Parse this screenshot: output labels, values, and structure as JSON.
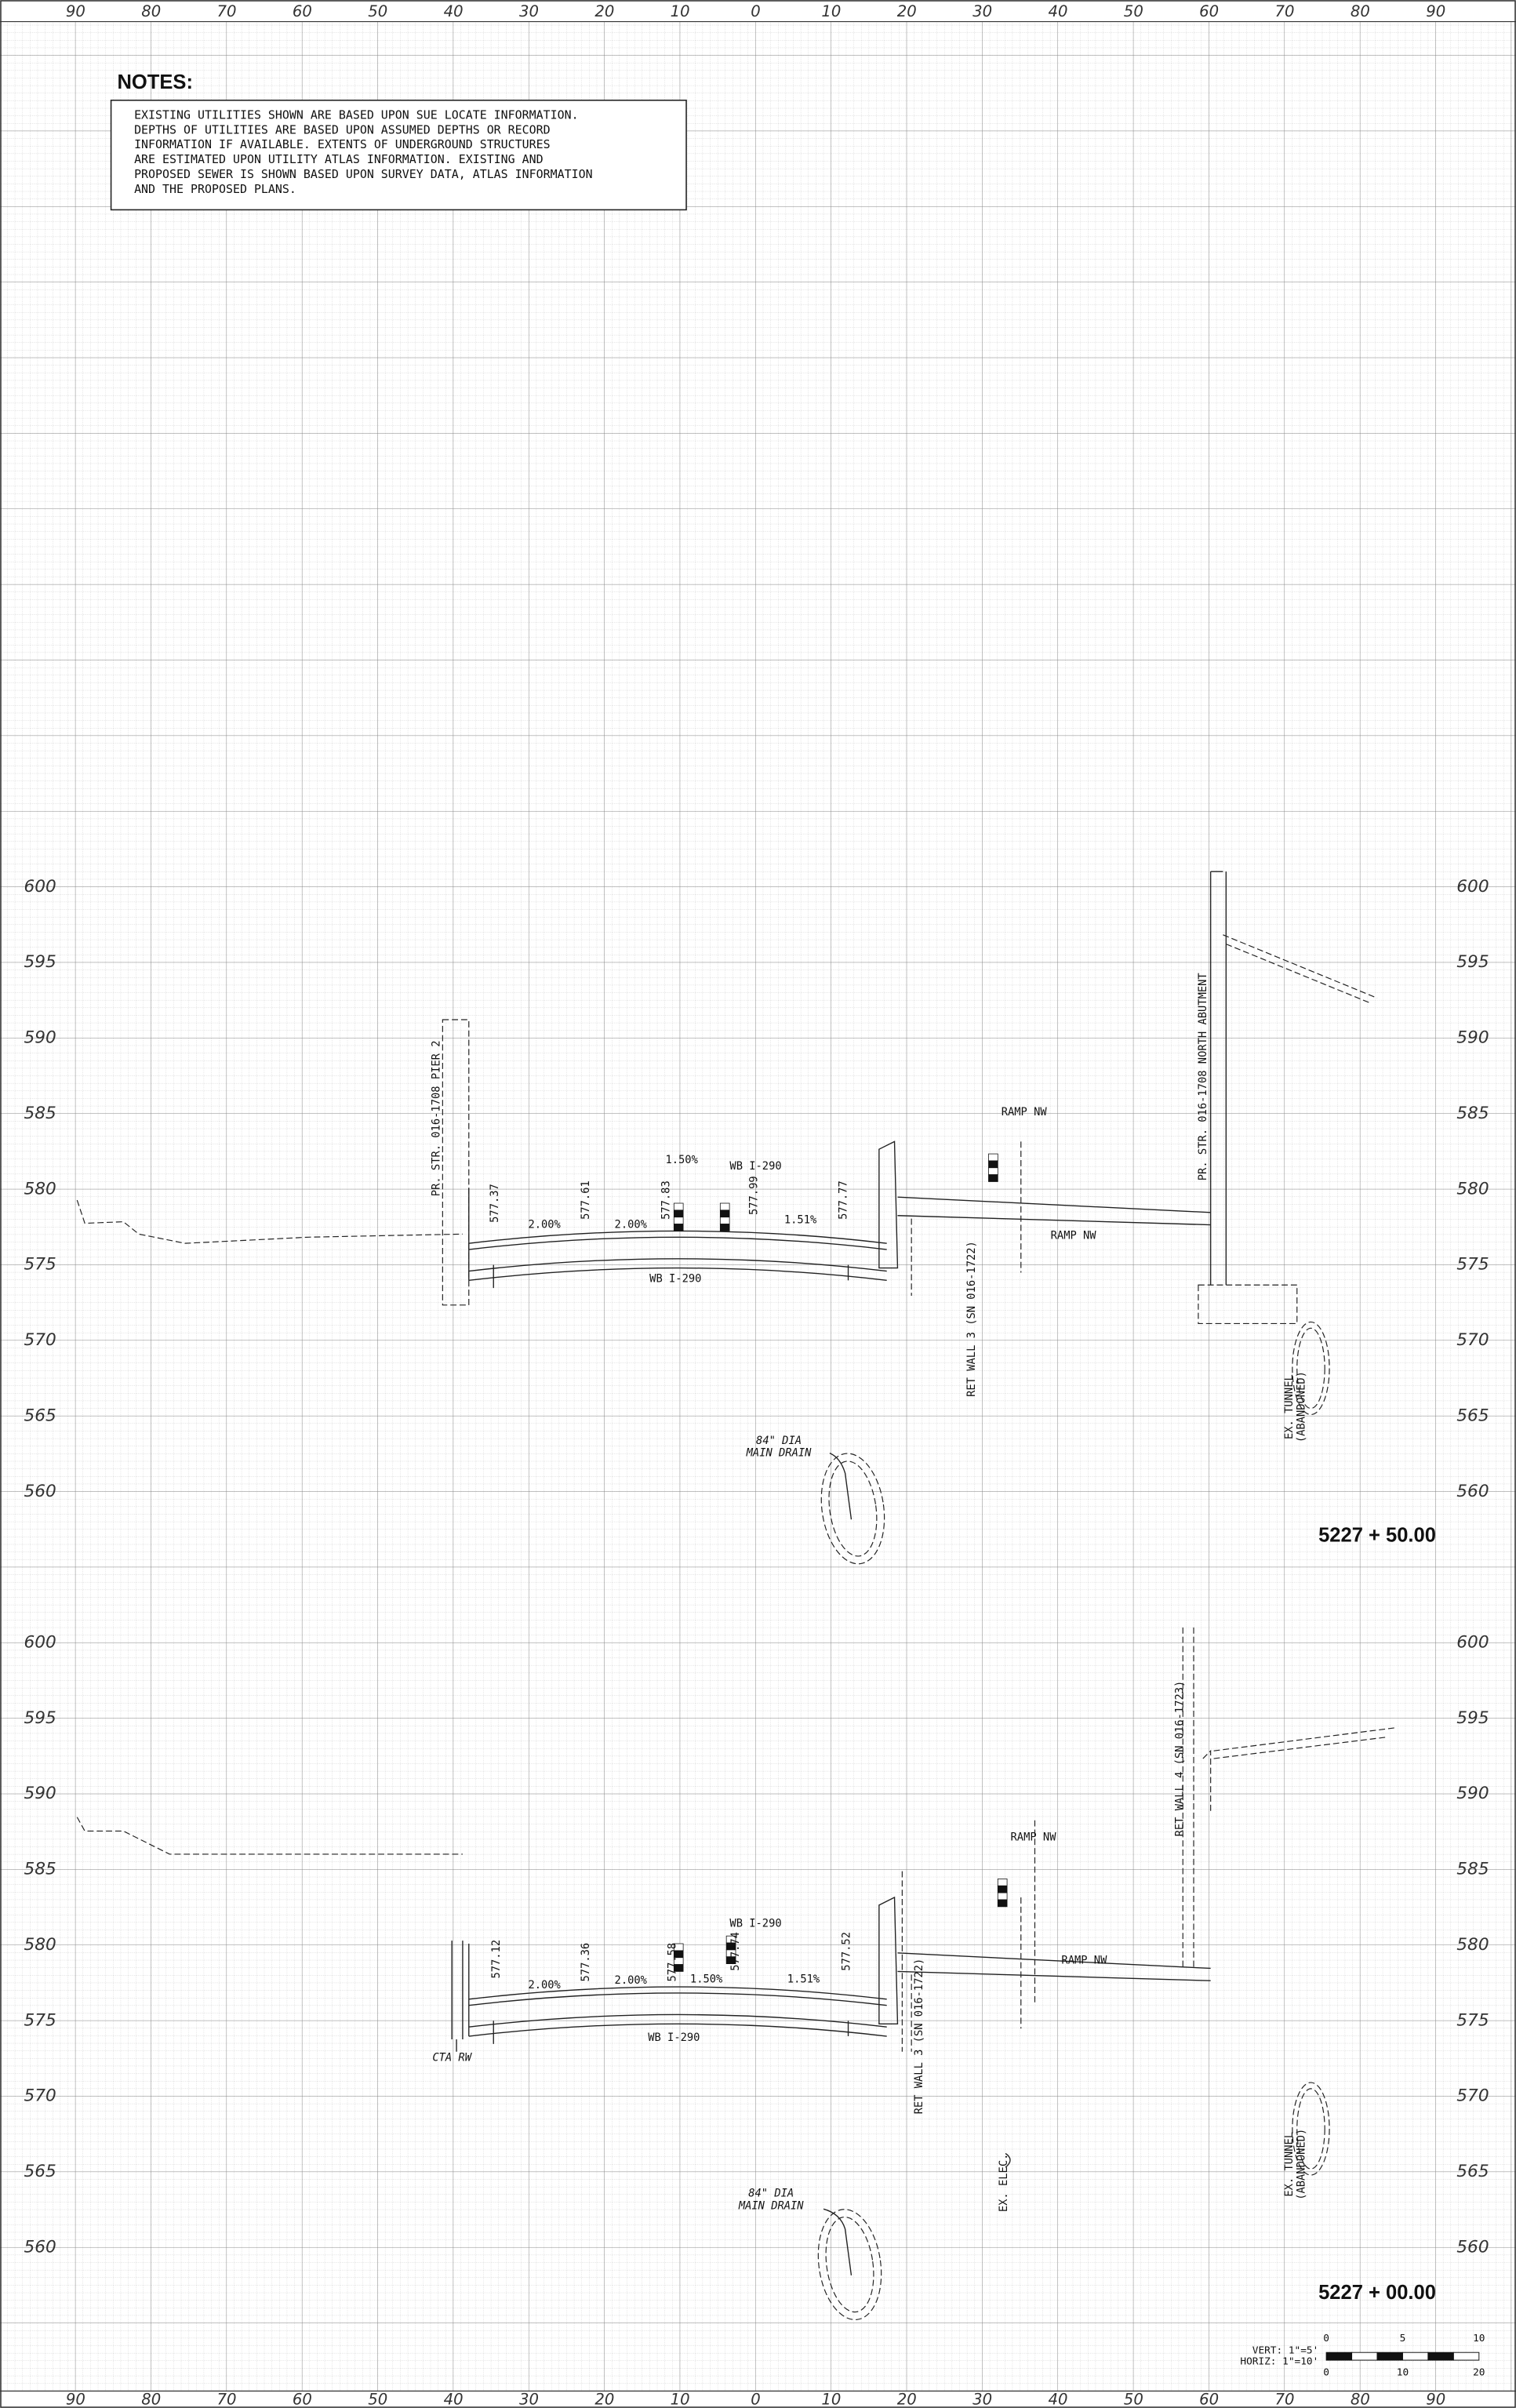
{
  "offset_labels": [
    "90",
    "80",
    "70",
    "60",
    "50",
    "40",
    "30",
    "20",
    "10",
    "0",
    "10",
    "20",
    "30",
    "40",
    "50",
    "60",
    "70",
    "80",
    "90"
  ],
  "notes": {
    "title": "NOTES:",
    "lines": [
      "EXISTING UTILITIES SHOWN ARE BASED UPON SUE LOCATE INFORMATION.",
      "DEPTHS OF UTILITIES ARE BASED UPON ASSUMED DEPTHS OR RECORD",
      "INFORMATION IF AVAILABLE.  EXTENTS OF UNDERGROUND STRUCTURES",
      "ARE ESTIMATED UPON UTILITY ATLAS INFORMATION.  EXISTING AND",
      "PROPOSED SEWER IS SHOWN BASED UPON SURVEY DATA, ATLAS INFORMATION",
      "AND THE PROPOSED PLANS."
    ]
  },
  "sections": [
    {
      "elevations": [
        600,
        595,
        590,
        585,
        580,
        575,
        570,
        565,
        560
      ],
      "station": "5227 + 50.00",
      "labels": [
        "PR. STR. 016-1708 PIER 2",
        "577.37",
        "2.00%",
        "577.61",
        "2.00%",
        "577.83",
        "1.50%",
        "WB I-290",
        "577.99",
        "1.51%",
        "577.77",
        "WB I-290",
        "RET WALL 3 (SN 016-1722)",
        "RAMP NW",
        "RAMP NW",
        "PR. STR. 016-1708 NORTH ABUTMENT",
        "84\" DIA",
        "MAIN DRAIN",
        "EX. TUNNEL",
        "(ABANDONED)"
      ]
    },
    {
      "elevations": [
        600,
        595,
        590,
        585,
        580,
        575,
        570,
        565,
        560
      ],
      "station": "5227 + 00.00",
      "labels": [
        "577.12",
        "2.00%",
        "577.36",
        "2.00%",
        "577.58",
        "1.50%",
        "WB I-290",
        "577.74",
        "1.51%",
        "577.52",
        "WB I-290",
        "CTA RW",
        "RET WALL 3 (SN 016-1722)",
        "RAMP NW",
        "RAMP NW",
        "RET WALL 4 (SN 016-1723)",
        "EX. ELEC.",
        "84\" DIA",
        "MAIN DRAIN",
        "EX. TUNNEL",
        "(ABANDONED)"
      ]
    }
  ],
  "scale_bar": {
    "vert": "VERT: 1\"=5'",
    "horiz": "HORIZ: 1\"=10'",
    "top_ticks": [
      0,
      5,
      10
    ],
    "bottom_ticks": [
      0,
      10,
      20
    ]
  }
}
